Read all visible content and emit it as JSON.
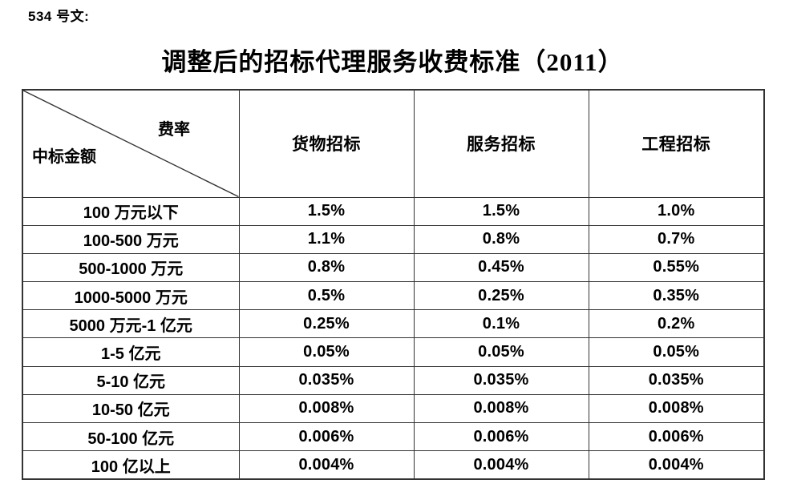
{
  "doc": {
    "ref_label": "534 号文:",
    "title": "调整后的招标代理服务收费标准（2011）"
  },
  "colors": {
    "background": "#ffffff",
    "text": "#000000",
    "table_border": "#333333"
  },
  "table": {
    "corner": {
      "top_right": "费率",
      "bottom_left": "中标金额"
    },
    "columns": [
      "货物招标",
      "服务招标",
      "工程招标"
    ],
    "rows": [
      {
        "label": "100 万元以下",
        "values": [
          "1.5%",
          "1.5%",
          "1.0%"
        ]
      },
      {
        "label": "100-500 万元",
        "values": [
          "1.1%",
          "0.8%",
          "0.7%"
        ]
      },
      {
        "label": "500-1000 万元",
        "values": [
          "0.8%",
          "0.45%",
          "0.55%"
        ]
      },
      {
        "label": "1000-5000 万元",
        "values": [
          "0.5%",
          "0.25%",
          "0.35%"
        ]
      },
      {
        "label": "5000 万元-1 亿元",
        "values": [
          "0.25%",
          "0.1%",
          "0.2%"
        ]
      },
      {
        "label": "1-5 亿元",
        "values": [
          "0.05%",
          "0.05%",
          "0.05%"
        ]
      },
      {
        "label": "5-10 亿元",
        "values": [
          "0.035%",
          "0.035%",
          "0.035%"
        ]
      },
      {
        "label": "10-50 亿元",
        "values": [
          "0.008%",
          "0.008%",
          "0.008%"
        ]
      },
      {
        "label": "50-100 亿元",
        "values": [
          "0.006%",
          "0.006%",
          "0.006%"
        ]
      },
      {
        "label": "100 亿以上",
        "values": [
          "0.004%",
          "0.004%",
          "0.004%"
        ]
      }
    ]
  }
}
